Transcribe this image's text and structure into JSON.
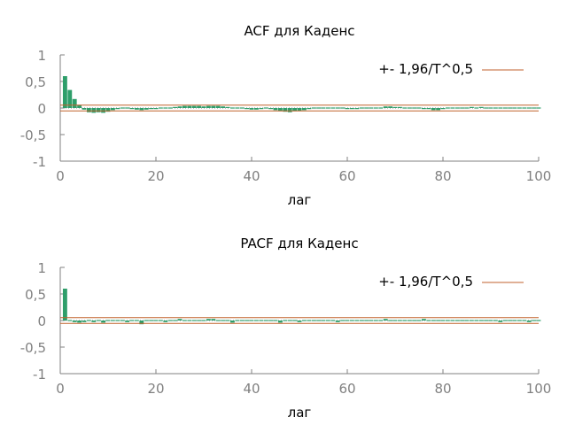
{
  "chart_data": [
    {
      "type": "bar",
      "title": "ACF для Каденс",
      "xlabel": "лаг",
      "ylabel": "",
      "xlim": [
        0,
        100
      ],
      "ylim": [
        -1,
        1
      ],
      "xticks": [
        "0",
        "20",
        "40",
        "60",
        "80",
        "100"
      ],
      "yticks": [
        "1",
        "0,5",
        "0",
        "-0,5",
        "-1"
      ],
      "grid": false,
      "legend_position": "top-right",
      "bounds": {
        "label": "+- 1,96/T^0,5",
        "value": 0.055
      },
      "colors": {
        "bars": "#2e9e6a",
        "bounds": "#c0622c",
        "zero_line": "#808080"
      },
      "series": [
        {
          "lags": [
            1,
            2,
            3,
            4,
            5,
            6,
            7,
            8,
            9,
            10,
            11,
            12,
            13,
            14,
            15,
            16,
            17,
            18,
            19,
            20,
            21,
            22,
            23,
            24,
            25,
            26,
            27,
            28,
            29,
            30,
            31,
            32,
            33,
            34,
            35,
            36,
            37,
            38,
            39,
            40,
            41,
            42,
            43,
            44,
            45,
            46,
            47,
            48,
            49,
            50,
            51,
            52,
            53,
            54,
            55,
            56,
            57,
            58,
            59,
            60,
            61,
            62,
            63,
            64,
            65,
            66,
            67,
            68,
            69,
            70,
            71,
            72,
            73,
            74,
            75,
            76,
            77,
            78,
            79,
            80,
            81,
            82,
            83,
            84,
            85,
            86,
            87,
            88,
            89,
            90,
            91,
            92,
            93,
            94,
            95,
            96,
            97,
            98,
            99,
            100
          ],
          "values": [
            0.6,
            0.34,
            0.17,
            0.06,
            -0.03,
            -0.08,
            -0.09,
            -0.08,
            -0.09,
            -0.07,
            -0.04,
            -0.02,
            -0.01,
            -0.01,
            -0.02,
            -0.03,
            -0.04,
            -0.03,
            -0.02,
            -0.02,
            -0.01,
            0.0,
            0.01,
            0.02,
            0.03,
            0.04,
            0.04,
            0.04,
            0.04,
            0.03,
            0.04,
            0.04,
            0.04,
            0.03,
            0.02,
            0.01,
            0.0,
            -0.01,
            -0.02,
            -0.03,
            -0.03,
            -0.02,
            -0.01,
            -0.02,
            -0.04,
            -0.06,
            -0.07,
            -0.08,
            -0.06,
            -0.05,
            -0.04,
            -0.02,
            -0.01,
            0.0,
            -0.01,
            -0.01,
            0.0,
            -0.01,
            -0.01,
            -0.02,
            -0.02,
            -0.02,
            -0.01,
            -0.01,
            -0.01,
            0.0,
            0.01,
            0.03,
            0.03,
            0.02,
            0.02,
            0.01,
            0.0,
            -0.01,
            -0.01,
            -0.02,
            -0.02,
            -0.04,
            -0.04,
            -0.02,
            -0.01,
            0.0,
            0.0,
            0.0,
            0.01,
            0.02,
            0.01,
            0.02,
            0.01,
            0.01,
            0.01,
            0.01,
            0.0,
            0.0,
            -0.01,
            -0.01,
            0.0,
            0.0,
            -0.01,
            -0.01
          ]
        }
      ]
    },
    {
      "type": "bar",
      "title": "PACF для Каденс",
      "xlabel": "лаг",
      "ylabel": "",
      "xlim": [
        0,
        100
      ],
      "ylim": [
        -1,
        1
      ],
      "xticks": [
        "0",
        "20",
        "40",
        "60",
        "80",
        "100"
      ],
      "yticks": [
        "1",
        "0,5",
        "0",
        "-0,5",
        "-1"
      ],
      "grid": false,
      "legend_position": "top-right",
      "bounds": {
        "label": "+- 1,96/T^0,5",
        "value": 0.055
      },
      "colors": {
        "bars": "#2e9e6a",
        "bounds": "#c0622c",
        "zero_line": "#808080"
      },
      "series": [
        {
          "lags": [
            1,
            2,
            3,
            4,
            5,
            6,
            7,
            8,
            9,
            10,
            11,
            12,
            13,
            14,
            15,
            16,
            17,
            18,
            19,
            20,
            21,
            22,
            23,
            24,
            25,
            26,
            27,
            28,
            29,
            30,
            31,
            32,
            33,
            34,
            35,
            36,
            37,
            38,
            39,
            40,
            41,
            42,
            43,
            44,
            45,
            46,
            47,
            48,
            49,
            50,
            51,
            52,
            53,
            54,
            55,
            56,
            57,
            58,
            59,
            60,
            61,
            62,
            63,
            64,
            65,
            66,
            67,
            68,
            69,
            70,
            71,
            72,
            73,
            74,
            75,
            76,
            77,
            78,
            79,
            80,
            81,
            82,
            83,
            84,
            85,
            86,
            87,
            88,
            89,
            90,
            91,
            92,
            93,
            94,
            95,
            96,
            97,
            98,
            99,
            100
          ],
          "values": [
            0.6,
            -0.02,
            -0.03,
            -0.04,
            -0.03,
            -0.02,
            -0.03,
            -0.02,
            -0.04,
            -0.01,
            0.0,
            0.01,
            0.0,
            -0.03,
            -0.01,
            0.0,
            -0.07,
            0.01,
            0.0,
            0.0,
            0.0,
            -0.03,
            -0.01,
            0.0,
            0.03,
            0.01,
            0.01,
            0.0,
            0.01,
            0.01,
            0.03,
            0.03,
            0.01,
            0.0,
            -0.02,
            -0.04,
            -0.01,
            0.02,
            0.01,
            0.0,
            -0.01,
            -0.02,
            -0.01,
            0.0,
            -0.01,
            -0.04,
            -0.02,
            -0.01,
            -0.01,
            -0.03,
            -0.02,
            0.0,
            0.01,
            0.0,
            0.0,
            0.0,
            -0.01,
            -0.03,
            0.0,
            0.01,
            0.0,
            0.01,
            0.01,
            0.0,
            0.0,
            0.0,
            0.01,
            0.03,
            0.01,
            0.0,
            -0.01,
            0.02,
            0.0,
            -0.01,
            -0.02,
            0.03,
            0.01,
            0.0,
            0.02,
            0.01,
            0.0,
            0.01,
            -0.01,
            0.0,
            0.01,
            -0.01,
            0.0,
            0.01,
            0.01,
            0.02,
            -0.01,
            -0.03,
            -0.02,
            0.01,
            0.02,
            -0.01,
            0.0,
            -0.03,
            0.01,
            0.0
          ]
        }
      ]
    }
  ]
}
